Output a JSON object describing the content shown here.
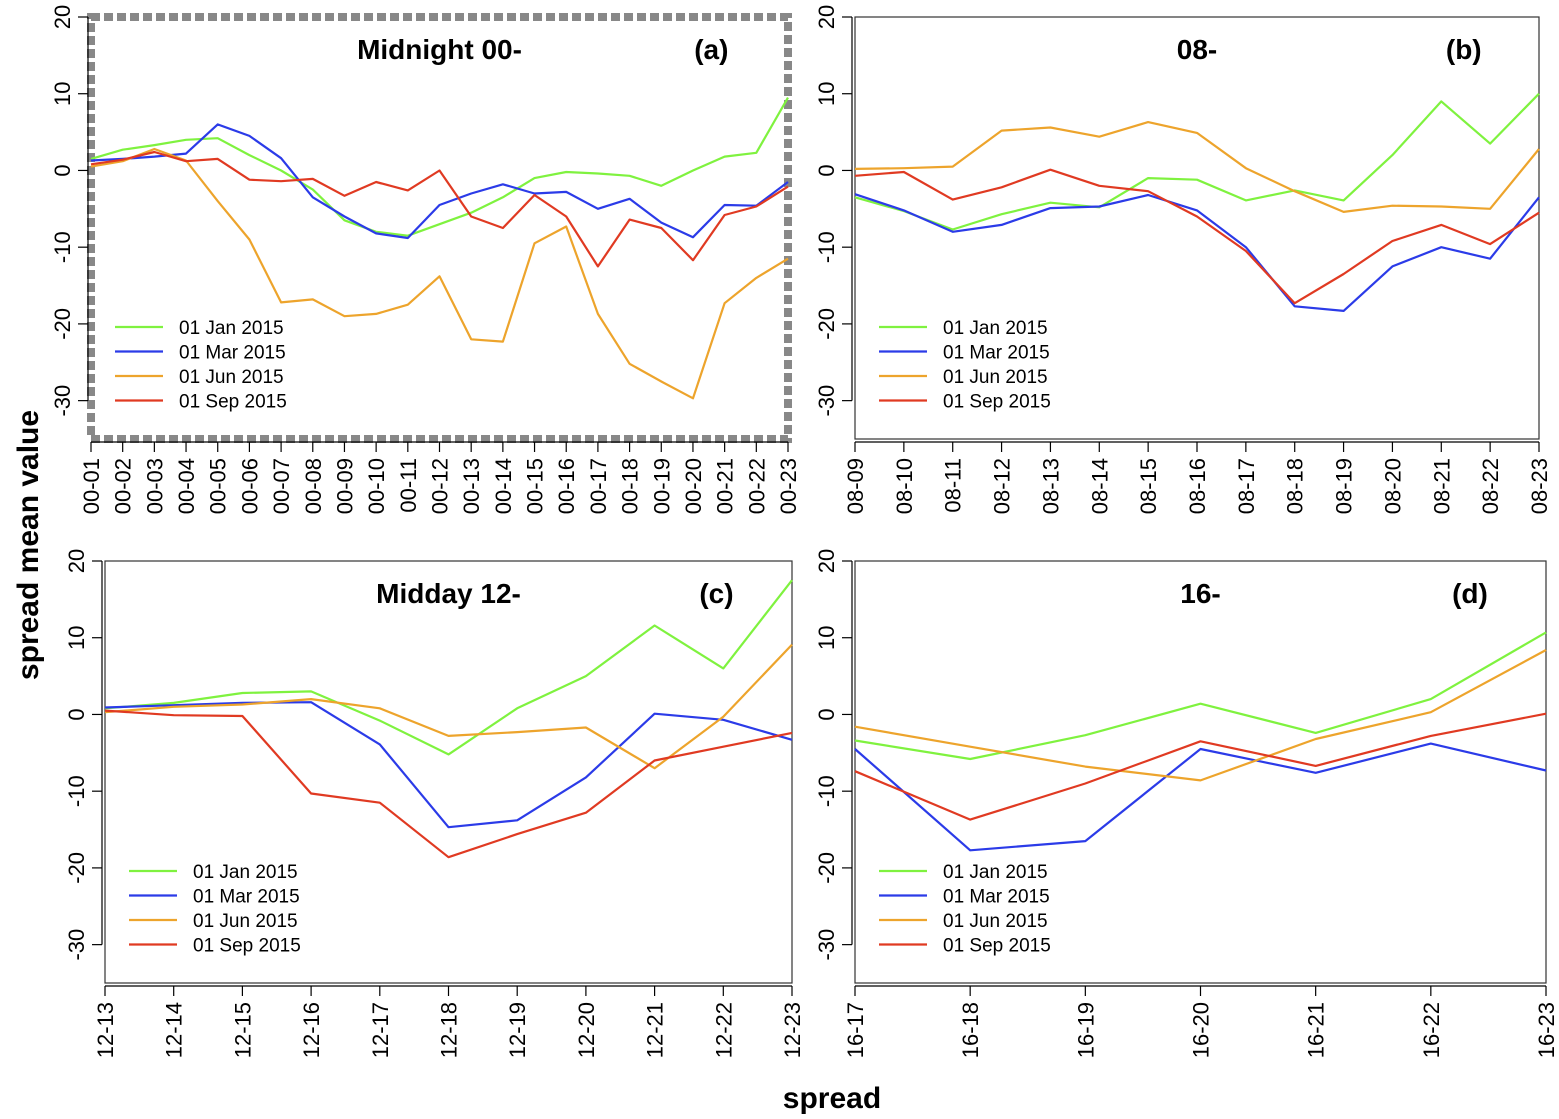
{
  "ylabel": "spread mean value",
  "xlabel": "spread",
  "colors": {
    "01 Jan 2015": "#7ff23f",
    "01 Mar 2015": "#2b3be8",
    "01 Jun 2015": "#eda42c",
    "01 Sep 2015": "#e03a22"
  },
  "chart_data": [
    {
      "type": "line",
      "panel": "a",
      "title": "Midnight 00-",
      "letter": "(a)",
      "highlighted": true,
      "ylim": [
        -35,
        20
      ],
      "yticks": [
        20,
        10,
        0,
        -10,
        -20,
        -30
      ],
      "categories": [
        "00-01",
        "00-02",
        "00-03",
        "00-04",
        "00-05",
        "00-06",
        "00-07",
        "00-08",
        "00-09",
        "00-10",
        "00-11",
        "00-12",
        "00-13",
        "00-14",
        "00-15",
        "00-16",
        "00-17",
        "00-18",
        "00-19",
        "00-20",
        "00-21",
        "00-22",
        "00-23"
      ],
      "series": [
        {
          "name": "01 Jan 2015",
          "values": [
            1.5,
            2.7,
            3.3,
            4.0,
            4.2,
            2.0,
            0.0,
            -2.5,
            -6.5,
            -8.0,
            -8.5,
            -7.0,
            -5.5,
            -3.5,
            -1.0,
            -0.2,
            -0.4,
            -0.7,
            -2.0,
            0.0,
            1.8,
            2.3,
            9.5
          ]
        },
        {
          "name": "01 Mar 2015",
          "values": [
            1.3,
            1.5,
            1.8,
            2.2,
            6.0,
            4.5,
            1.6,
            -3.5,
            -6.0,
            -8.2,
            -8.8,
            -4.5,
            -3.0,
            -1.8,
            -3.0,
            -2.8,
            -5.0,
            -3.7,
            -6.8,
            -8.7,
            -4.5,
            -4.6,
            -1.5
          ]
        },
        {
          "name": "01 Jun 2015",
          "values": [
            0.5,
            1.2,
            2.8,
            1.3,
            -4.0,
            -9.0,
            -17.2,
            -16.8,
            -19.0,
            -18.7,
            -17.5,
            -13.8,
            -22.0,
            -22.3,
            -9.5,
            -7.3,
            -18.7,
            -25.2,
            -27.5,
            -29.7,
            -17.3,
            -14.0,
            -11.5
          ]
        },
        {
          "name": "01 Sep 2015",
          "values": [
            0.8,
            1.4,
            2.4,
            1.2,
            1.5,
            -1.2,
            -1.4,
            -1.1,
            -3.3,
            -1.5,
            -2.6,
            0.0,
            -6.0,
            -7.5,
            -3.2,
            -6.0,
            -12.5,
            -6.4,
            -7.5,
            -11.7,
            -5.8,
            -4.7,
            -2.1
          ]
        }
      ],
      "legend": [
        "01 Jan 2015",
        "01 Mar 2015",
        "01 Jun 2015",
        "01 Sep 2015"
      ]
    },
    {
      "type": "line",
      "panel": "b",
      "title": "08-",
      "letter": "(b)",
      "highlighted": false,
      "ylim": [
        -35,
        20
      ],
      "yticks": [
        20,
        10,
        0,
        -10,
        -20,
        -30
      ],
      "categories": [
        "08-09",
        "08-10",
        "08-11",
        "08-12",
        "08-13",
        "08-14",
        "08-15",
        "08-16",
        "08-17",
        "08-18",
        "08-19",
        "08-20",
        "08-21",
        "08-22",
        "08-23"
      ],
      "series": [
        {
          "name": "01 Jan 2015",
          "values": [
            -3.5,
            -5.3,
            -7.7,
            -5.7,
            -4.2,
            -4.8,
            -1.0,
            -1.2,
            -3.9,
            -2.6,
            -3.9,
            2.0,
            9.0,
            3.5,
            10.0
          ]
        },
        {
          "name": "01 Mar 2015",
          "values": [
            -3.1,
            -5.2,
            -8.0,
            -7.1,
            -4.9,
            -4.7,
            -3.2,
            -5.2,
            -10.0,
            -17.7,
            -18.3,
            -12.5,
            -10.0,
            -11.5,
            -3.5
          ]
        },
        {
          "name": "01 Jun 2015",
          "values": [
            0.2,
            0.3,
            0.5,
            5.2,
            5.6,
            4.4,
            6.3,
            4.9,
            0.3,
            -2.7,
            -5.4,
            -4.6,
            -4.7,
            -5.0,
            2.8
          ]
        },
        {
          "name": "01 Sep 2015",
          "values": [
            -0.7,
            -0.2,
            -3.8,
            -2.2,
            0.1,
            -2.0,
            -2.7,
            -6.0,
            -10.5,
            -17.3,
            -13.5,
            -9.2,
            -7.1,
            -9.6,
            -5.5
          ]
        }
      ],
      "legend": [
        "01 Jan 2015",
        "01 Mar 2015",
        "01 Jun 2015",
        "01 Sep 2015"
      ]
    },
    {
      "type": "line",
      "panel": "c",
      "title": "Midday 12-",
      "letter": "(c)",
      "highlighted": false,
      "ylim": [
        -35,
        20
      ],
      "yticks": [
        20,
        10,
        0,
        -10,
        -20,
        -30
      ],
      "categories": [
        "12-13",
        "12-14",
        "12-15",
        "12-16",
        "12-17",
        "12-18",
        "12-19",
        "12-20",
        "12-21",
        "12-22",
        "12-23"
      ],
      "series": [
        {
          "name": "01 Jan 2015",
          "values": [
            0.8,
            1.5,
            2.8,
            3.0,
            -0.8,
            -5.2,
            0.8,
            5.0,
            11.6,
            6.0,
            17.5
          ]
        },
        {
          "name": "01 Mar 2015",
          "values": [
            0.9,
            1.2,
            1.5,
            1.6,
            -3.9,
            -14.7,
            -13.8,
            -8.2,
            0.1,
            -0.7,
            -3.3
          ]
        },
        {
          "name": "01 Jun 2015",
          "values": [
            0.3,
            1.0,
            1.3,
            2.0,
            0.8,
            -2.8,
            -2.3,
            -1.7,
            -7.0,
            -0.3,
            9.1
          ]
        },
        {
          "name": "01 Sep 2015",
          "values": [
            0.5,
            -0.1,
            -0.2,
            -10.3,
            -11.5,
            -18.6,
            -15.6,
            -12.8,
            -6.0,
            -4.2,
            -2.4
          ]
        }
      ],
      "legend": [
        "01 Jan 2015",
        "01 Mar 2015",
        "01 Jun 2015",
        "01 Sep 2015"
      ]
    },
    {
      "type": "line",
      "panel": "d",
      "title": "16-",
      "letter": "(d)",
      "highlighted": false,
      "ylim": [
        -35,
        20
      ],
      "yticks": [
        20,
        10,
        0,
        -10,
        -20,
        -30
      ],
      "categories": [
        "16-17",
        "16-18",
        "16-19",
        "16-20",
        "16-21",
        "16-22",
        "16-23"
      ],
      "series": [
        {
          "name": "01 Jan 2015",
          "values": [
            -3.4,
            -5.8,
            -2.7,
            1.4,
            -2.4,
            2.0,
            10.7
          ]
        },
        {
          "name": "01 Mar 2015",
          "values": [
            -4.5,
            -17.7,
            -16.5,
            -4.5,
            -7.6,
            -3.8,
            -7.3
          ]
        },
        {
          "name": "01 Jun 2015",
          "values": [
            -1.6,
            -4.2,
            -6.8,
            -8.6,
            -3.2,
            0.3,
            8.4
          ]
        },
        {
          "name": "01 Sep 2015",
          "values": [
            -7.4,
            -13.7,
            -9.0,
            -3.5,
            -6.7,
            -2.8,
            0.1
          ]
        }
      ],
      "legend": [
        "01 Jan 2015",
        "01 Mar 2015",
        "01 Jun 2015",
        "01 Sep 2015"
      ]
    }
  ]
}
